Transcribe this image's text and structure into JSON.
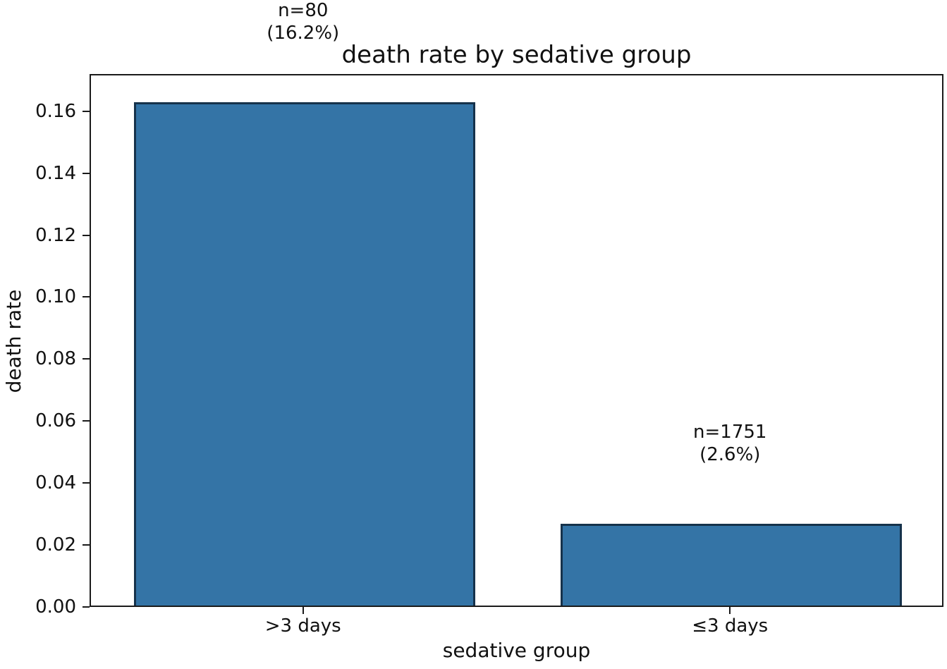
{
  "chart_data": {
    "type": "bar",
    "title": "death rate by sedative group",
    "xlabel": "sedative group",
    "ylabel": "death rate",
    "categories": [
      ">3 days",
      "≤3 days"
    ],
    "values": [
      0.1625,
      0.0264
    ],
    "bar_annotations": [
      [
        "n=80",
        "(16.2%)"
      ],
      [
        "n=1751",
        "(2.6%)"
      ]
    ],
    "counts": [
      80,
      1751
    ],
    "death_rate_percents": [
      "16.2%",
      "2.6%"
    ],
    "ytick_labels": [
      "0.00",
      "0.02",
      "0.04",
      "0.06",
      "0.08",
      "0.10",
      "0.12",
      "0.14",
      "0.16"
    ],
    "ytick_values": [
      0.0,
      0.02,
      0.04,
      0.06,
      0.08,
      0.1,
      0.12,
      0.14,
      0.16
    ],
    "ylim": [
      0,
      0.172
    ],
    "bar_width_fraction": 0.8,
    "bar_color": "#3474a6",
    "bar_edge_color": "#16324b",
    "spine_color": "#1a1a1a",
    "background_color": "#ffffff",
    "grid": false,
    "legend_position": "none"
  }
}
